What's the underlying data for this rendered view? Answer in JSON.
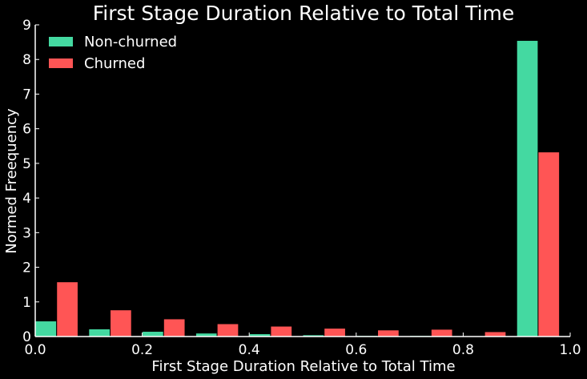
{
  "chart_data": {
    "type": "bar",
    "title": "First Stage Duration Relative to Total Time",
    "xlabel": "First Stage Duration Relative to Total Time",
    "ylabel": "Normed Freequency",
    "xlim": [
      0.0,
      1.0
    ],
    "ylim": [
      0,
      9
    ],
    "grid": false,
    "legend_position": "top-left",
    "x_ticks": [
      0.0,
      0.2,
      0.4,
      0.6,
      0.8,
      1.0
    ],
    "x_tick_labels": [
      "0.0",
      "0.2",
      "0.4",
      "0.6",
      "0.8",
      "1.0"
    ],
    "y_ticks": [
      0,
      1,
      2,
      3,
      4,
      5,
      6,
      7,
      8,
      9
    ],
    "y_tick_labels": [
      "0",
      "1",
      "2",
      "3",
      "4",
      "5",
      "6",
      "7",
      "8",
      "9"
    ],
    "bin_edges": [
      0.0,
      0.1,
      0.2,
      0.3,
      0.4,
      0.5,
      0.6,
      0.7,
      0.8,
      0.9,
      1.0
    ],
    "series": [
      {
        "name": "Non-churned",
        "color": "#44d9a1",
        "values": [
          0.45,
          0.22,
          0.15,
          0.1,
          0.08,
          0.05,
          0.03,
          0.03,
          0.01,
          8.55
        ]
      },
      {
        "name": "Churned",
        "color": "#ff5555",
        "values": [
          1.58,
          0.77,
          0.51,
          0.37,
          0.3,
          0.24,
          0.19,
          0.21,
          0.14,
          5.33
        ]
      }
    ]
  }
}
